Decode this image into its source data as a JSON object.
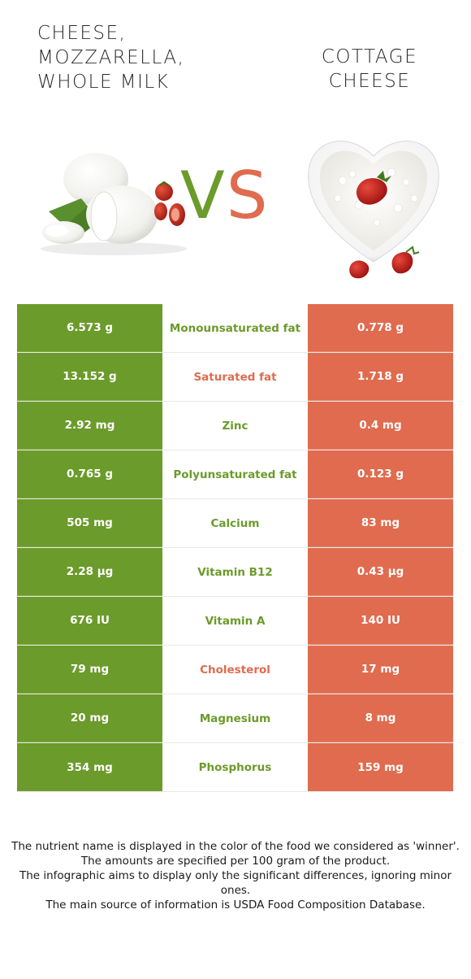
{
  "left_food": {
    "title_lines": [
      "CHEESE,",
      "MOZZARELLA,",
      "WHOLE MILK"
    ],
    "color": "#6b9b2a"
  },
  "right_food": {
    "title_lines": [
      "COTTAGE",
      "CHEESE"
    ],
    "color": "#e06b4e"
  },
  "vs": {
    "v": "V",
    "s": "S"
  },
  "rows": [
    {
      "left": "6.573 g",
      "nutrient": "Monounsaturated fat",
      "right": "0.778 g",
      "winner": "left"
    },
    {
      "left": "13.152 g",
      "nutrient": "Saturated fat",
      "right": "1.718 g",
      "winner": "right"
    },
    {
      "left": "2.92 mg",
      "nutrient": "Zinc",
      "right": "0.4 mg",
      "winner": "left"
    },
    {
      "left": "0.765 g",
      "nutrient": "Polyunsaturated fat",
      "right": "0.123 g",
      "winner": "left"
    },
    {
      "left": "505 mg",
      "nutrient": "Calcium",
      "right": "83 mg",
      "winner": "left"
    },
    {
      "left": "2.28 µg",
      "nutrient": "Vitamin B12",
      "right": "0.43 µg",
      "winner": "left"
    },
    {
      "left": "676 IU",
      "nutrient": "Vitamin A",
      "right": "140 IU",
      "winner": "left"
    },
    {
      "left": "79 mg",
      "nutrient": "Cholesterol",
      "right": "17 mg",
      "winner": "right"
    },
    {
      "left": "20 mg",
      "nutrient": "Magnesium",
      "right": "8 mg",
      "winner": "left"
    },
    {
      "left": "354 mg",
      "nutrient": "Phosphorus",
      "right": "159 mg",
      "winner": "left"
    }
  ],
  "footer": [
    "The nutrient name is displayed in the color of the food we considered as 'winner'.",
    "The amounts are specified per 100 gram of the product.",
    "The infographic aims to display only the significant differences, ignoring minor ones.",
    "The main source of information is USDA Food Composition Database."
  ]
}
